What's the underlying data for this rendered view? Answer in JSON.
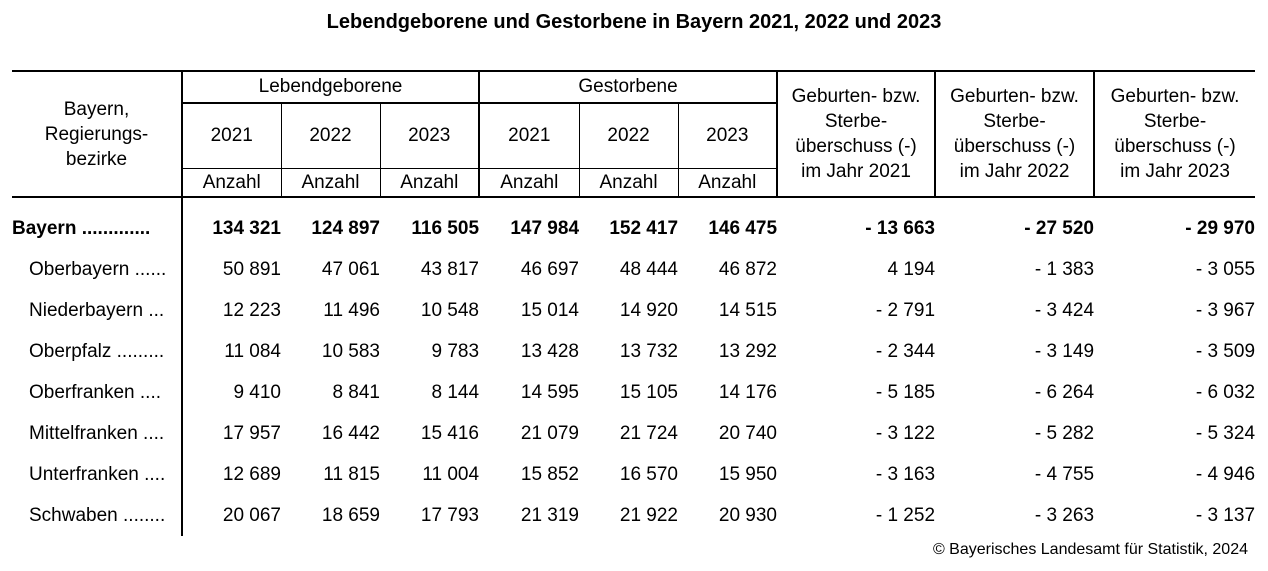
{
  "title": "Lebendgeborene und Gestorbene in Bayern 2021, 2022 und 2023",
  "header": {
    "stub": [
      "Bayern,",
      "Regierungs-",
      "bezirke"
    ],
    "group_births": "Lebendgeborene",
    "group_deaths": "Gestorbene",
    "years": [
      "2021",
      "2022",
      "2023"
    ],
    "unit": "Anzahl",
    "surplus": [
      [
        "Geburten- bzw.",
        "Sterbe-",
        "überschuss (-)",
        "im Jahr 2021"
      ],
      [
        "Geburten- bzw.",
        "Sterbe-",
        "überschuss (-)",
        "im Jahr 2022"
      ],
      [
        "Geburten- bzw.",
        "Sterbe-",
        "überschuss (-)",
        "im Jahr 2023"
      ]
    ]
  },
  "rows": [
    {
      "label": "Bayern .............",
      "births": [
        "134 321",
        "124 897",
        "116 505"
      ],
      "deaths": [
        "147 984",
        "152 417",
        "146 475"
      ],
      "surplus": [
        "- 13 663",
        "- 27 520",
        "- 29 970"
      ],
      "bold": true
    },
    {
      "label": "Oberbayern ......",
      "births": [
        "50 891",
        "47 061",
        "43 817"
      ],
      "deaths": [
        "46 697",
        "48 444",
        "46 872"
      ],
      "surplus": [
        "4 194",
        "- 1 383",
        "- 3 055"
      ]
    },
    {
      "label": "Niederbayern ...",
      "births": [
        "12 223",
        "11 496",
        "10 548"
      ],
      "deaths": [
        "15 014",
        "14 920",
        "14 515"
      ],
      "surplus": [
        "- 2 791",
        "- 3 424",
        "- 3 967"
      ]
    },
    {
      "label": "Oberpfalz .........",
      "births": [
        "11 084",
        "10 583",
        "9 783"
      ],
      "deaths": [
        "13 428",
        "13 732",
        "13 292"
      ],
      "surplus": [
        "- 2 344",
        "- 3 149",
        "- 3 509"
      ]
    },
    {
      "label": "Oberfranken ....",
      "births": [
        "9 410",
        "8 841",
        "8 144"
      ],
      "deaths": [
        "14 595",
        "15 105",
        "14 176"
      ],
      "surplus": [
        "- 5 185",
        "- 6 264",
        "- 6 032"
      ]
    },
    {
      "label": "Mittelfranken ....",
      "births": [
        "17 957",
        "16 442",
        "15 416"
      ],
      "deaths": [
        "21 079",
        "21 724",
        "20 740"
      ],
      "surplus": [
        "- 3 122",
        "- 5 282",
        "- 5 324"
      ]
    },
    {
      "label": "Unterfranken ....",
      "births": [
        "12 689",
        "11 815",
        "11 004"
      ],
      "deaths": [
        "15 852",
        "16 570",
        "15 950"
      ],
      "surplus": [
        "- 3 163",
        "- 4 755",
        "- 4 946"
      ]
    },
    {
      "label": "Schwaben ........",
      "births": [
        "20 067",
        "18 659",
        "17 793"
      ],
      "deaths": [
        "21 319",
        "21 922",
        "20 930"
      ],
      "surplus": [
        "- 1 252",
        "- 3 263",
        "- 3 137"
      ]
    }
  ],
  "footer": {
    "copyright": "© Bayerisches Landesamt für Statistik, 2024"
  }
}
